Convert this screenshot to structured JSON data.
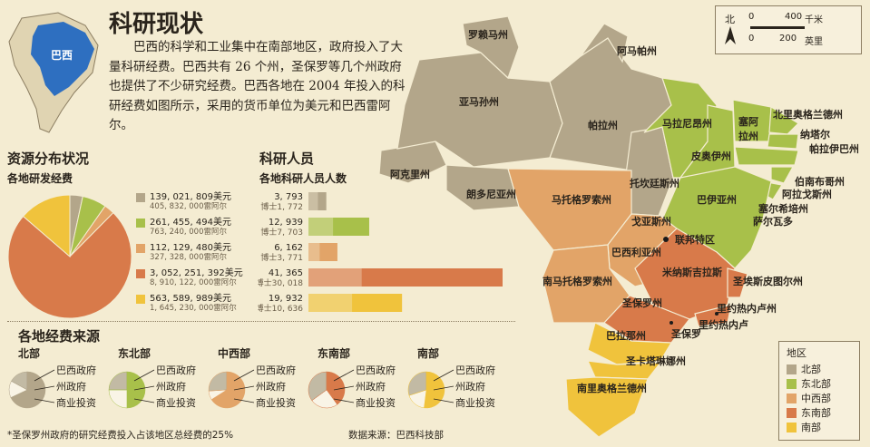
{
  "title": "科研现状",
  "intro": "巴西的科学和工业集中在南部地区，政府投入了大量科研经费。巴西共有 26 个州，圣保罗等几个州政府也提供了不少研究经费。巴西各地在 2004 年投入的科研经费如图所示，采用的货币单位为美元和巴西雷阿尔。",
  "inset_label": "巴西",
  "colors": {
    "north": "#b3a68a",
    "northeast": "#a8c04a",
    "midwest": "#e2a468",
    "southeast": "#d87a4a",
    "south": "#f0c33c",
    "background": "#f4ecd2",
    "dark": "#5a4a32",
    "light": "#e8ddc0"
  },
  "section_funding": {
    "title": "资源分布状况",
    "subtitle": "各地研发经费"
  },
  "section_researchers": {
    "title": "科研人员",
    "subtitle": "各地科研人员人数"
  },
  "section_sources": {
    "title": "各地经费来源"
  },
  "scale": {
    "north": "北",
    "km_0": "0",
    "km_400": "400",
    "km_unit": "千米",
    "mi_0": "0",
    "mi_200": "200",
    "mi_unit": "英里"
  },
  "footnote": "*圣保罗州政府的研究经费投入占该地区总经费的25%",
  "source": "数据来源：巴西科技部",
  "legend": {
    "title": "地区",
    "items": [
      "北部",
      "东北部",
      "中西部",
      "东南部",
      "南部"
    ]
  },
  "source_labels": [
    "巴西政府",
    "州政府",
    "商业投资"
  ],
  "chart_data": [
    {
      "type": "pie",
      "title": "各地研发经费",
      "categories": [
        "北部",
        "东北部",
        "中西部",
        "东南部",
        "南部"
      ],
      "values": [
        139021809,
        261455494,
        112129480,
        3052251392,
        563589989
      ],
      "value_labels": [
        "139, 021, 809美元",
        "261, 455, 494美元",
        "112, 129, 480美元",
        "3, 052, 251, 392美元",
        "563, 589, 989美元"
      ],
      "secondary_labels": [
        "405, 832, 000雷阿尔",
        "763, 240, 000雷阿尔",
        "327, 328, 000雷阿尔",
        "8, 910, 122, 000雷阿尔",
        "1, 645, 230, 000雷阿尔"
      ]
    },
    {
      "type": "bar",
      "title": "各地科研人员人数",
      "categories": [
        "北部",
        "东北部",
        "中西部",
        "东南部",
        "南部"
      ],
      "series": [
        {
          "values": [
            3793,
            12939,
            6162,
            41365,
            19932
          ]
        },
        {
          "name": "博士",
          "values": [
            1772,
            7703,
            3771,
            30018,
            10636
          ]
        }
      ],
      "value_labels": [
        "3, 793",
        "12, 939",
        "6, 162",
        "41, 365",
        "19, 932"
      ],
      "doctor_labels": [
        "博士1, 772",
        "博士7, 703",
        "博士3, 771",
        "博士30, 018",
        "博士10, 636"
      ]
    },
    {
      "type": "pie",
      "title": "各地经费来源",
      "categories": [
        "北部",
        "东北部",
        "中西部",
        "东南部",
        "南部"
      ],
      "series_names": [
        "巴西政府",
        "州政府",
        "商业投资"
      ],
      "values": [
        [
          68,
          15,
          17
        ],
        [
          50,
          25,
          25
        ],
        [
          66,
          8,
          26
        ],
        [
          40,
          25,
          35
        ],
        [
          52,
          18,
          30
        ]
      ]
    }
  ],
  "map_labels": {
    "roraima": "罗赖马州",
    "amapa": "阿马帕州",
    "amazonas": "亚马孙州",
    "para": "帕拉州",
    "acre": "阿克里州",
    "rondonia": "朗多尼亚州",
    "tocantins": "托坎廷斯州",
    "maranhao": "马拉尼昂州",
    "piaui": "皮奥伊州",
    "ceara": "塞阿拉州",
    "rn": "北里奥格兰德州",
    "paraiba": "帕拉伊巴州",
    "natal": "纳塔尔",
    "pernambuco": "伯南布哥州",
    "alagoas": "阿拉戈斯州",
    "sergipe": "塞尔希培州",
    "bahia": "巴伊亚州",
    "salvador": "萨尔瓦多",
    "mt": "马托格罗索州",
    "goias": "戈亚斯州",
    "df": "联邦特区",
    "brasilia": "巴西利亚州",
    "ms": "南马托格罗索州",
    "mg": "米纳斯吉拉斯",
    "es": "圣埃斯皮图尔州",
    "sp": "圣保罗州",
    "rj": "里约热内卢州",
    "rio": "里约热内卢",
    "sp_city": "圣保罗",
    "parana": "巴拉那州",
    "sc": "圣卡塔琳娜州",
    "rs": "南里奥格兰德州"
  }
}
